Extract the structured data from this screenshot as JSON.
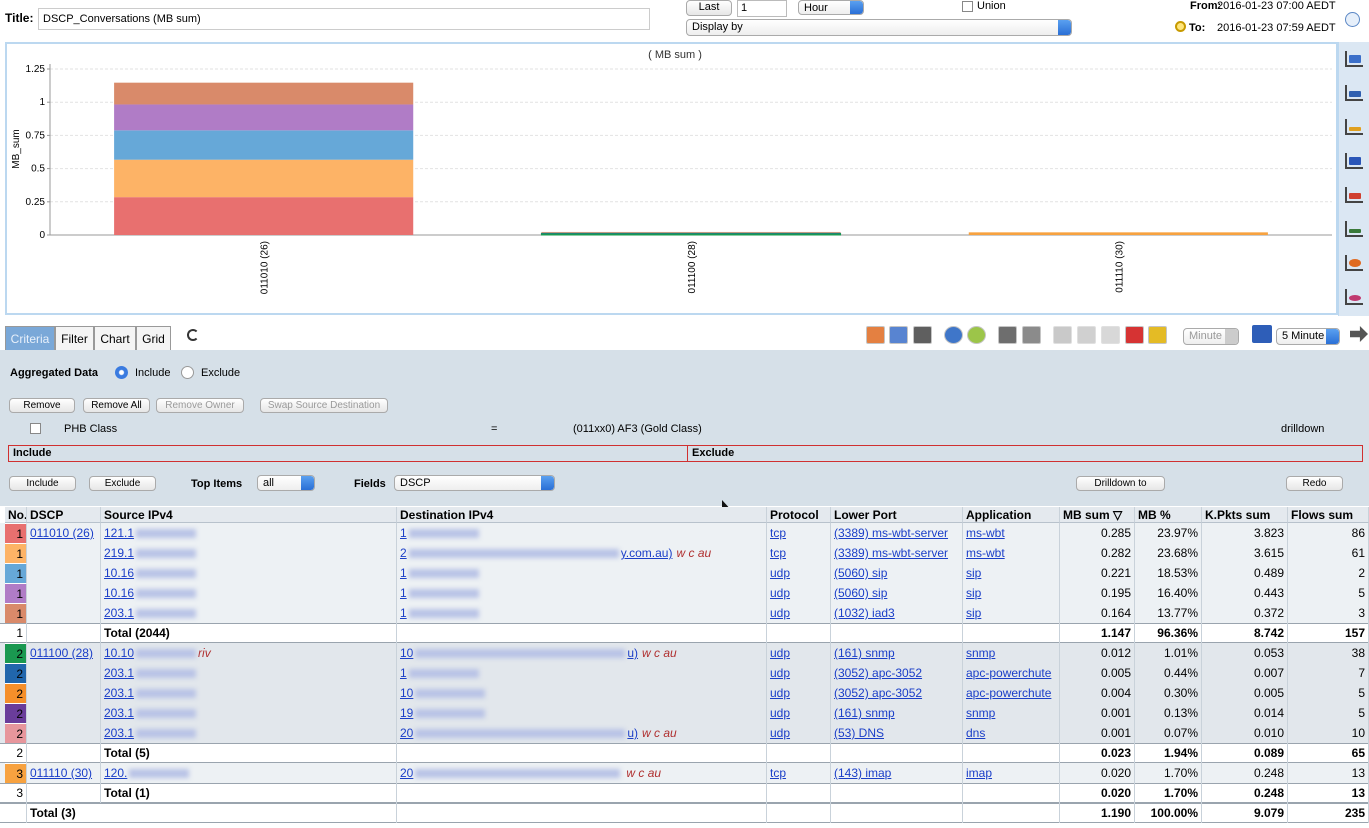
{
  "header": {
    "title_label": "Title:",
    "title_value": "DSCP_Conversations (MB sum)",
    "last_button": "Last",
    "last_count": "1",
    "period": "Hour",
    "union": "Union",
    "display_by": "Display by",
    "from_label": "From:",
    "from_value": "2016-01-23 07:00 AEDT",
    "to_label": "To:",
    "to_value": "2016-01-23 07:59 AEDT"
  },
  "chart": {
    "type": "bar",
    "stacked": true,
    "title": "( MB sum )",
    "y_label": "MB_sum",
    "ylim": [
      0,
      1.25
    ],
    "yticks": [
      0,
      0.25,
      0.5,
      0.75,
      1,
      1.25
    ],
    "grid": true
  },
  "tabs": [
    "Criteria",
    "Filter",
    "Chart",
    "Grid"
  ],
  "toolbar": {
    "interval_unit": "Minute",
    "interval": "5 Minute"
  },
  "criteria": {
    "aggregated_label": "Aggregated Data",
    "include": "Include",
    "exclude": "Exclude",
    "buttons": [
      "Remove",
      "Remove All",
      "Remove Owner",
      "Swap Source Destination"
    ],
    "filter": {
      "field": "PHB Class",
      "operator": "=",
      "value": "(011xx0) AF3 (Gold Class)",
      "action": "drilldown"
    },
    "include_header": "Include",
    "exclude_header": "Exclude",
    "include_button": "Include",
    "exclude_button": "Exclude",
    "top_items_label": "Top Items",
    "top_items": "all",
    "fields_label": "Fields",
    "fields": "DSCP",
    "drilldown_button": "Drilldown to",
    "redo_button": "Redo"
  },
  "table": {
    "columns": [
      "No.",
      "DSCP",
      "Source IPv4",
      "Destination IPv4",
      "Protocol",
      "Lower Port",
      "Application",
      "MB sum ▽",
      "MB %",
      "K.Pkts sum",
      "Flows sum"
    ],
    "groups": [
      {
        "dscp": "011010 (26)",
        "rows": [
          {
            "color": "#e8706f",
            "no": "1",
            "src": "121.1",
            "dst": "1",
            "protocol": "tcp",
            "port": "(3389) ms-wbt-server",
            "application": "ms-wbt",
            "mb_sum": "0.285",
            "mb_pct": "23.97%",
            "kpkts": "3.823",
            "flows": "86"
          },
          {
            "color": "#fdb366",
            "no": "1",
            "src": "219.1",
            "dst": "2",
            "dst_tail": "y.com.au)",
            "dst_note": "w  c  au",
            "protocol": "tcp",
            "port": "(3389) ms-wbt-server",
            "application": "ms-wbt",
            "mb_sum": "0.282",
            "mb_pct": "23.68%",
            "kpkts": "3.615",
            "flows": "61"
          },
          {
            "color": "#66a8d8",
            "no": "1",
            "src": "10.16",
            "dst": "1",
            "protocol": "udp",
            "port": "(5060) sip",
            "application": "sip",
            "mb_sum": "0.221",
            "mb_pct": "18.53%",
            "kpkts": "0.489",
            "flows": "2"
          },
          {
            "color": "#b07cc6",
            "no": "1",
            "src": "10.16",
            "dst": "1",
            "protocol": "udp",
            "port": "(5060) sip",
            "application": "sip",
            "mb_sum": "0.195",
            "mb_pct": "16.40%",
            "kpkts": "0.443",
            "flows": "5"
          },
          {
            "color": "#d98a6a",
            "no": "1",
            "src": "203.1",
            "dst": "1",
            "protocol": "udp",
            "port": "(1032) iad3",
            "application": "sip",
            "mb_sum": "0.164",
            "mb_pct": "13.77%",
            "kpkts": "0.372",
            "flows": "3"
          }
        ],
        "total": {
          "no": "1",
          "label": "Total (2044)",
          "mb_sum": "1.147",
          "mb_pct": "96.36%",
          "kpkts": "8.742",
          "flows": "157"
        }
      },
      {
        "dscp": "011100 (28)",
        "rows": [
          {
            "color": "#1a9850",
            "no": "2",
            "src": "10.10",
            "src_note": "riv",
            "dst": "10",
            "dst_tail": "u)",
            "dst_note": "w  c  au",
            "protocol": "udp",
            "port": "(161) snmp",
            "application": "snmp",
            "mb_sum": "0.012",
            "mb_pct": "1.01%",
            "kpkts": "0.053",
            "flows": "38"
          },
          {
            "color": "#2166ac",
            "no": "2",
            "src": "203.1",
            "dst": "1",
            "protocol": "udp",
            "port": "(3052) apc-3052",
            "application": "apc-powerchute",
            "mb_sum": "0.005",
            "mb_pct": "0.44%",
            "kpkts": "0.007",
            "flows": "7"
          },
          {
            "color": "#f58f2a",
            "no": "2",
            "src": "203.1",
            "dst": "10",
            "protocol": "udp",
            "port": "(3052) apc-3052",
            "application": "apc-powerchute",
            "mb_sum": "0.004",
            "mb_pct": "0.30%",
            "kpkts": "0.005",
            "flows": "5"
          },
          {
            "color": "#6a3d9a",
            "no": "2",
            "src": "203.1",
            "dst": "19",
            "protocol": "udp",
            "port": "(161) snmp",
            "application": "snmp",
            "mb_sum": "0.001",
            "mb_pct": "0.13%",
            "kpkts": "0.014",
            "flows": "5"
          },
          {
            "color": "#e7969c",
            "no": "2",
            "src": "203.1",
            "dst": "20",
            "dst_tail": "u)",
            "dst_note": "w  c  au",
            "protocol": "udp",
            "port": "(53) DNS",
            "application": "dns",
            "mb_sum": "0.001",
            "mb_pct": "0.07%",
            "kpkts": "0.010",
            "flows": "10"
          }
        ],
        "total": {
          "no": "2",
          "label": "Total (5)",
          "mb_sum": "0.023",
          "mb_pct": "1.94%",
          "kpkts": "0.089",
          "flows": "65"
        }
      },
      {
        "dscp": "011110 (30)",
        "rows": [
          {
            "color": "#f7a240",
            "no": "3",
            "src": "120.",
            "dst": "20",
            "dst_note": "w  c  au",
            "protocol": "tcp",
            "port": "(143) imap",
            "application": "imap",
            "mb_sum": "0.020",
            "mb_pct": "1.70%",
            "kpkts": "0.248",
            "flows": "13"
          }
        ],
        "total": {
          "no": "3",
          "label": "Total (1)",
          "mb_sum": "0.020",
          "mb_pct": "1.70%",
          "kpkts": "0.248",
          "flows": "13"
        }
      }
    ],
    "grand_total": {
      "label": "Total (3)",
      "mb_sum": "1.190",
      "mb_pct": "100.00%",
      "kpkts": "9.079",
      "flows": "235"
    }
  }
}
